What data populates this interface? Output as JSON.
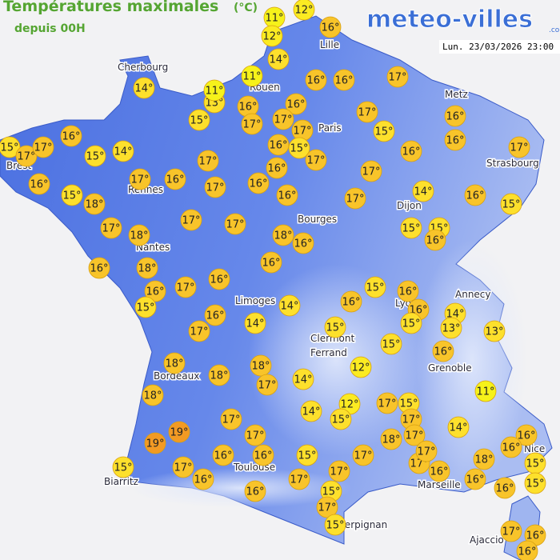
{
  "header": {
    "title": "Températures maximales",
    "unit": "(°C)",
    "subtitle": "depuis 00H",
    "logo": "meteo-villes",
    "logo_suffix": ".com",
    "timestamp": "Lun. 23/03/2026 23:00"
  },
  "cities": [
    {
      "name": "Cherbourg"
    },
    {
      "name": "Lille"
    },
    {
      "name": "Rouen"
    },
    {
      "name": "Paris"
    },
    {
      "name": "Metz"
    },
    {
      "name": "Strasbourg"
    },
    {
      "name": "Brest"
    },
    {
      "name": "Rennes"
    },
    {
      "name": "Nantes"
    },
    {
      "name": "Dijon"
    },
    {
      "name": "Bourges"
    },
    {
      "name": "Annecy"
    },
    {
      "name": "Lyon"
    },
    {
      "name": "Limoges"
    },
    {
      "name": "Clermont"
    },
    {
      "name": "Ferrand"
    },
    {
      "name": "Grenoble"
    },
    {
      "name": "Bordeaux"
    },
    {
      "name": "Nice"
    },
    {
      "name": "Toulouse"
    },
    {
      "name": "Biarritz"
    },
    {
      "name": "Marseille"
    },
    {
      "name": "Perpignan"
    },
    {
      "name": "Ajaccio"
    }
  ],
  "temperatures": [
    {
      "value": 13,
      "label": "13°"
    },
    {
      "value": 11,
      "label": "11°"
    },
    {
      "value": 12,
      "label": "12°"
    },
    {
      "value": 12,
      "label": "12°"
    },
    {
      "value": 16,
      "label": "16°"
    },
    {
      "value": 14,
      "label": "14°"
    },
    {
      "value": 11,
      "label": "11°"
    },
    {
      "value": 11,
      "label": "11°"
    },
    {
      "value": 16,
      "label": "16°"
    },
    {
      "value": 16,
      "label": "16°"
    },
    {
      "value": 17,
      "label": "17°"
    },
    {
      "value": 14,
      "label": "14°"
    },
    {
      "value": 16,
      "label": "16°"
    },
    {
      "value": 16,
      "label": "16°"
    },
    {
      "value": 15,
      "label": "15°"
    },
    {
      "value": 17,
      "label": "17°"
    },
    {
      "value": 17,
      "label": "17°"
    },
    {
      "value": 17,
      "label": "17°"
    },
    {
      "value": 17,
      "label": "17°"
    },
    {
      "value": 15,
      "label": "15°"
    },
    {
      "value": 16,
      "label": "16°"
    },
    {
      "value": 16,
      "label": "16°"
    },
    {
      "value": 17,
      "label": "17°"
    },
    {
      "value": 16,
      "label": "16°"
    },
    {
      "value": 15,
      "label": "15°"
    },
    {
      "value": 17,
      "label": "17°"
    },
    {
      "value": 17,
      "label": "17°"
    },
    {
      "value": 15,
      "label": "15°"
    },
    {
      "value": 14,
      "label": "14°"
    },
    {
      "value": 16,
      "label": "16°"
    },
    {
      "value": 15,
      "label": "15°"
    },
    {
      "value": 17,
      "label": "17°"
    },
    {
      "value": 16,
      "label": "16°"
    },
    {
      "value": 17,
      "label": "17°"
    },
    {
      "value": 16,
      "label": "16°"
    },
    {
      "value": 17,
      "label": "17°"
    },
    {
      "value": 16,
      "label": "16°"
    },
    {
      "value": 17,
      "label": "17°"
    },
    {
      "value": 16,
      "label": "16°"
    },
    {
      "value": 17,
      "label": "17°"
    },
    {
      "value": 16,
      "label": "16°"
    },
    {
      "value": 15,
      "label": "15°"
    },
    {
      "value": 18,
      "label": "18°"
    },
    {
      "value": 16,
      "label": "16°"
    },
    {
      "value": 17,
      "label": "17°"
    },
    {
      "value": 14,
      "label": "14°"
    },
    {
      "value": 16,
      "label": "16°"
    },
    {
      "value": 15,
      "label": "15°"
    },
    {
      "value": 17,
      "label": "17°"
    },
    {
      "value": 17,
      "label": "17°"
    },
    {
      "value": 17,
      "label": "17°"
    },
    {
      "value": 18,
      "label": "18°"
    },
    {
      "value": 18,
      "label": "18°"
    },
    {
      "value": 16,
      "label": "16°"
    },
    {
      "value": 15,
      "label": "15°"
    },
    {
      "value": 15,
      "label": "15°"
    },
    {
      "value": 16,
      "label": "16°"
    },
    {
      "value": 16,
      "label": "16°"
    },
    {
      "value": 18,
      "label": "18°"
    },
    {
      "value": 16,
      "label": "16°"
    },
    {
      "value": 16,
      "label": "16°"
    },
    {
      "value": 17,
      "label": "17°"
    },
    {
      "value": 16,
      "label": "16°"
    },
    {
      "value": 15,
      "label": "15°"
    },
    {
      "value": 15,
      "label": "15°"
    },
    {
      "value": 16,
      "label": "16°"
    },
    {
      "value": 16,
      "label": "16°"
    },
    {
      "value": 16,
      "label": "16°"
    },
    {
      "value": 14,
      "label": "14°"
    },
    {
      "value": 16,
      "label": "16°"
    },
    {
      "value": 14,
      "label": "14°"
    },
    {
      "value": 17,
      "label": "17°"
    },
    {
      "value": 15,
      "label": "15°"
    },
    {
      "value": 14,
      "label": "14°"
    },
    {
      "value": 13,
      "label": "13°"
    },
    {
      "value": 15,
      "label": "15°"
    },
    {
      "value": 13,
      "label": "13°"
    },
    {
      "value": 15,
      "label": "15°"
    },
    {
      "value": 16,
      "label": "16°"
    },
    {
      "value": 18,
      "label": "18°"
    },
    {
      "value": 18,
      "label": "18°"
    },
    {
      "value": 18,
      "label": "18°"
    },
    {
      "value": 17,
      "label": "17°"
    },
    {
      "value": 12,
      "label": "12°"
    },
    {
      "value": 14,
      "label": "14°"
    },
    {
      "value": 18,
      "label": "18°"
    },
    {
      "value": 11,
      "label": "11°"
    },
    {
      "value": 12,
      "label": "12°"
    },
    {
      "value": 17,
      "label": "17°"
    },
    {
      "value": 15,
      "label": "15°"
    },
    {
      "value": 17,
      "label": "17°"
    },
    {
      "value": 14,
      "label": "14°"
    },
    {
      "value": 15,
      "label": "15°"
    },
    {
      "value": 14,
      "label": "14°"
    },
    {
      "value": 17,
      "label": "17°"
    },
    {
      "value": 19,
      "label": "19°"
    },
    {
      "value": 19,
      "label": "19°"
    },
    {
      "value": 17,
      "label": "17°"
    },
    {
      "value": 18,
      "label": "18°"
    },
    {
      "value": 17,
      "label": "17°"
    },
    {
      "value": 17,
      "label": "17°"
    },
    {
      "value": 17,
      "label": "17°"
    },
    {
      "value": 17,
      "label": "17°"
    },
    {
      "value": 16,
      "label": "16°"
    },
    {
      "value": 18,
      "label": "18°"
    },
    {
      "value": 16,
      "label": "16°"
    },
    {
      "value": 16,
      "label": "16°"
    },
    {
      "value": 15,
      "label": "15°"
    },
    {
      "value": 15,
      "label": "15°"
    },
    {
      "value": 16,
      "label": "16°"
    },
    {
      "value": 16,
      "label": "16°"
    },
    {
      "value": 15,
      "label": "15°"
    },
    {
      "value": 17,
      "label": "17°"
    },
    {
      "value": 15,
      "label": "15°"
    },
    {
      "value": 17,
      "label": "17°"
    },
    {
      "value": 16,
      "label": "16°"
    },
    {
      "value": 17,
      "label": "17°"
    },
    {
      "value": 16,
      "label": "16°"
    },
    {
      "value": 15,
      "label": "15°"
    },
    {
      "value": 16,
      "label": "16°"
    },
    {
      "value": 16,
      "label": "16°"
    },
    {
      "value": 17,
      "label": "17°"
    },
    {
      "value": 15,
      "label": "15°"
    },
    {
      "value": 17,
      "label": "17°"
    },
    {
      "value": 16,
      "label": "16°"
    },
    {
      "value": 16,
      "label": "16°"
    }
  ]
}
